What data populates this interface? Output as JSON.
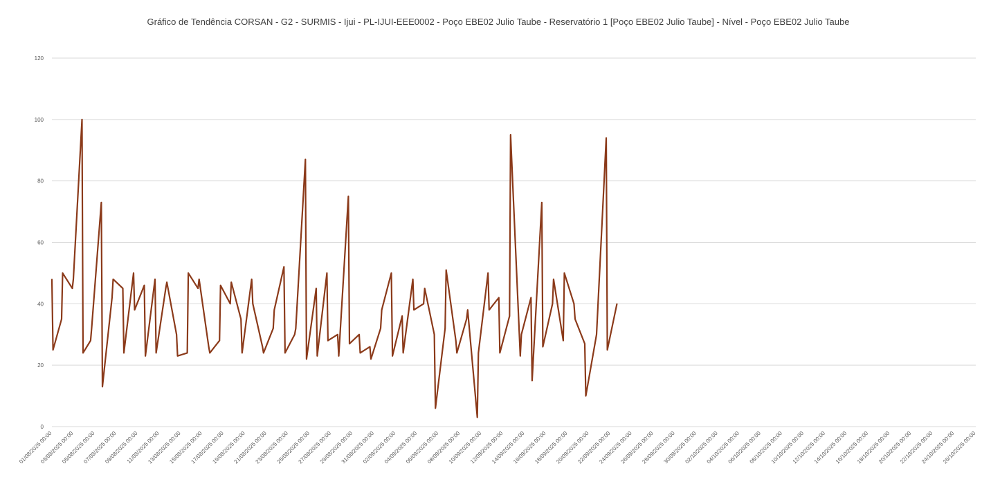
{
  "chart_data": {
    "type": "line",
    "title": "Gráfico de Tendência CORSAN - G2 - SURMIS - Ijui - PL-IJUI-EEE0002 - Poço EBE02 Julio Taube - Reservatório 1 [Poço EBE02 Julio Taube] - Nível - Poço EBE02 Julio Taube",
    "xlabel": "",
    "ylabel": "",
    "ylim": [
      0,
      120
    ],
    "yticks": [
      0,
      20,
      40,
      60,
      80,
      100,
      120
    ],
    "grid": true,
    "legend": "none",
    "series_color": "#8B3A1A",
    "x_tick_labels": [
      "01/08/2025 00:00",
      "03/08/2025 00:00",
      "05/08/2025 00:00",
      "07/08/2025 00:00",
      "09/08/2025 00:00",
      "11/08/2025 00:00",
      "13/08/2025 00:00",
      "15/08/2025 00:00",
      "17/08/2025 00:00",
      "19/08/2025 00:00",
      "21/08/2025 00:00",
      "23/08/2025 00:00",
      "25/08/2025 00:00",
      "27/08/2025 00:00",
      "29/08/2025 00:00",
      "31/08/2025 00:00",
      "02/09/2025 00:00",
      "04/09/2025 00:00",
      "06/09/2025 00:00",
      "08/09/2025 00:00",
      "10/09/2025 00:00",
      "12/09/2025 00:00",
      "14/09/2025 00:00",
      "16/09/2025 00:00",
      "18/09/2025 00:00",
      "20/09/2025 00:00",
      "22/09/2025 00:00",
      "24/09/2025 00:00",
      "26/09/2025 00:00",
      "28/09/2025 00:00",
      "30/09/2025 00:00",
      "02/10/2025 00:00",
      "04/10/2025 00:00",
      "06/10/2025 00:00",
      "08/10/2025 00:00",
      "10/10/2025 00:00",
      "12/10/2025 00:00",
      "14/10/2025 00:00",
      "16/10/2025 00:00",
      "18/10/2025 00:00",
      "20/10/2025 00:00",
      "22/10/2025 00:00",
      "24/10/2025 00:00",
      "26/10/2025 00:00"
    ],
    "series": [
      {
        "x": [
          0.0,
          0.05,
          0.45,
          0.5,
          0.95,
          1.0,
          1.4,
          1.45,
          1.8,
          1.85,
          2.3,
          2.35,
          2.8,
          2.85,
          3.3,
          3.35,
          3.8,
          3.85,
          4.3,
          4.35,
          4.8,
          4.85,
          5.3,
          5.35,
          5.8,
          5.85,
          6.3,
          6.35,
          6.8,
          6.85,
          7.3,
          7.35,
          7.8,
          7.85,
          8.3,
          8.35,
          8.8,
          8.85,
          9.3,
          9.35,
          9.8,
          9.85,
          10.3,
          10.35,
          10.8,
          10.85,
          11.3,
          11.35,
          11.8,
          11.85,
          12.3,
          12.35,
          12.8,
          12.85,
          13.3,
          13.35,
          13.8,
          13.85,
          14.3,
          14.35,
          14.8,
          14.85,
          15.3,
          15.35,
          15.8,
          15.85,
          16.3,
          16.35,
          16.8,
          16.85,
          17.3,
          17.35,
          17.8,
          17.85,
          18.3,
          18.35,
          18.8,
          18.85,
          19.3,
          19.35,
          19.8,
          19.85,
          20.3,
          20.35,
          20.8,
          20.85,
          21.3,
          21.35,
          21.8,
          21.85,
          22.3,
          22.35,
          22.8,
          22.85,
          23.3,
          23.35,
          23.8,
          23.85,
          24.3,
          24.35,
          24.8,
          24.85,
          25.3,
          25.35,
          25.8,
          25.85,
          26.3
        ],
        "y": [
          48,
          25,
          35,
          50,
          45,
          48,
          100,
          24,
          28,
          32,
          73,
          13,
          42,
          48,
          45,
          24,
          50,
          38,
          46,
          23,
          48,
          24,
          45,
          47,
          30,
          23,
          24,
          50,
          45,
          48,
          26,
          24,
          28,
          46,
          40,
          47,
          35,
          24,
          48,
          40,
          26,
          24,
          32,
          38,
          52,
          24,
          30,
          32,
          87,
          22,
          45,
          23,
          50,
          28,
          30,
          23,
          75,
          27,
          30,
          24,
          26,
          22,
          32,
          38,
          50,
          23,
          36,
          24,
          48,
          38,
          40,
          45,
          30,
          6,
          32,
          51,
          28,
          24,
          35,
          38,
          3,
          24,
          50,
          38,
          42,
          24,
          36,
          95,
          23,
          30,
          42,
          15,
          73,
          26,
          40,
          48,
          28,
          50,
          40,
          35,
          27,
          10,
          28,
          30,
          94,
          25,
          40
        ]
      }
    ]
  }
}
